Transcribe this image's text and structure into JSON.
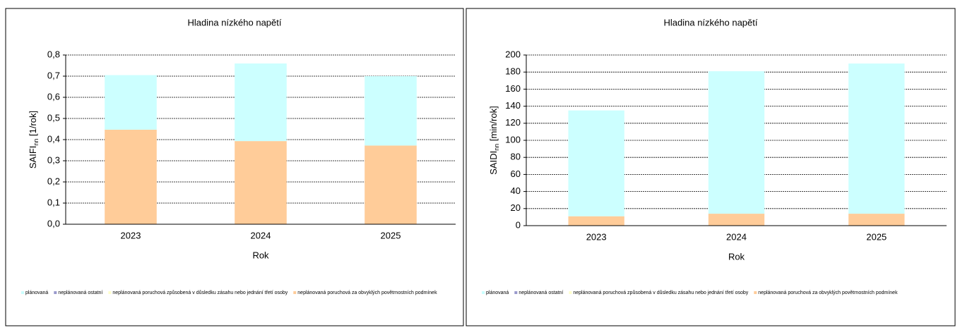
{
  "chart_data": [
    {
      "type": "bar",
      "stacked": true,
      "title": "Hladina nízkého napětí",
      "x_label": "Rok",
      "y_label": {
        "main": "SAIFI",
        "sub": "nn",
        "unit": "[1/rok]"
      },
      "categories": [
        "2023",
        "2024",
        "2025"
      ],
      "series": [
        {
          "name": "plánovaná",
          "color": "#ccffff",
          "values": [
            0.258,
            0.367,
            0.328
          ]
        },
        {
          "name": "neplánovaná ostatní",
          "color": "#9999cc",
          "values": [
            0,
            0,
            0
          ]
        },
        {
          "name": "neplánovaná poruchová způsobená v důsledku zásahu nebo jednání třetí osoby",
          "color": "#ffffcc",
          "values": [
            0,
            0,
            0
          ]
        },
        {
          "name": "neplánovaná poruchová za obvyklých povětrnostních podmínek",
          "color": "#ffcc99",
          "values": [
            0.447,
            0.393,
            0.372
          ]
        }
      ],
      "ylim": [
        0,
        0.8
      ],
      "yticks": [
        {
          "value": 0,
          "label": "0,0"
        },
        {
          "value": 0.1,
          "label": "0,1"
        },
        {
          "value": 0.2,
          "label": "0,2"
        },
        {
          "value": 0.3,
          "label": "0,3"
        },
        {
          "value": 0.4,
          "label": "0,4"
        },
        {
          "value": 0.5,
          "label": "0,5"
        },
        {
          "value": 0.6,
          "label": "0,6"
        },
        {
          "value": 0.7,
          "label": "0,7"
        },
        {
          "value": 0.8,
          "label": "0,8"
        }
      ],
      "grid": true,
      "legend": "bottom"
    },
    {
      "type": "bar",
      "stacked": true,
      "title": "Hladina nízkého napětí",
      "x_label": "Rok",
      "y_label": {
        "main": "SAIDI",
        "sub": "nn",
        "unit": "[min/rok]"
      },
      "categories": [
        "2023",
        "2024",
        "2025"
      ],
      "series": [
        {
          "name": "plánovaná",
          "color": "#ccffff",
          "values": [
            124,
            167,
            176
          ]
        },
        {
          "name": "neplánovaná ostatní",
          "color": "#9999cc",
          "values": [
            0,
            0,
            0
          ]
        },
        {
          "name": "neplánovaná poruchová způsobená v důsledku zásahu nebo jednání třetí osoby",
          "color": "#ffffcc",
          "values": [
            0,
            0,
            0
          ]
        },
        {
          "name": "neplánovaná poruchová za obvyklých povětrnostních podmínek",
          "color": "#ffcc99",
          "values": [
            11,
            14,
            14
          ]
        }
      ],
      "ylim": [
        0,
        200
      ],
      "yticks": [
        0,
        20,
        40,
        60,
        80,
        100,
        120,
        140,
        160,
        180,
        200
      ],
      "grid": true,
      "legend": "bottom"
    }
  ]
}
